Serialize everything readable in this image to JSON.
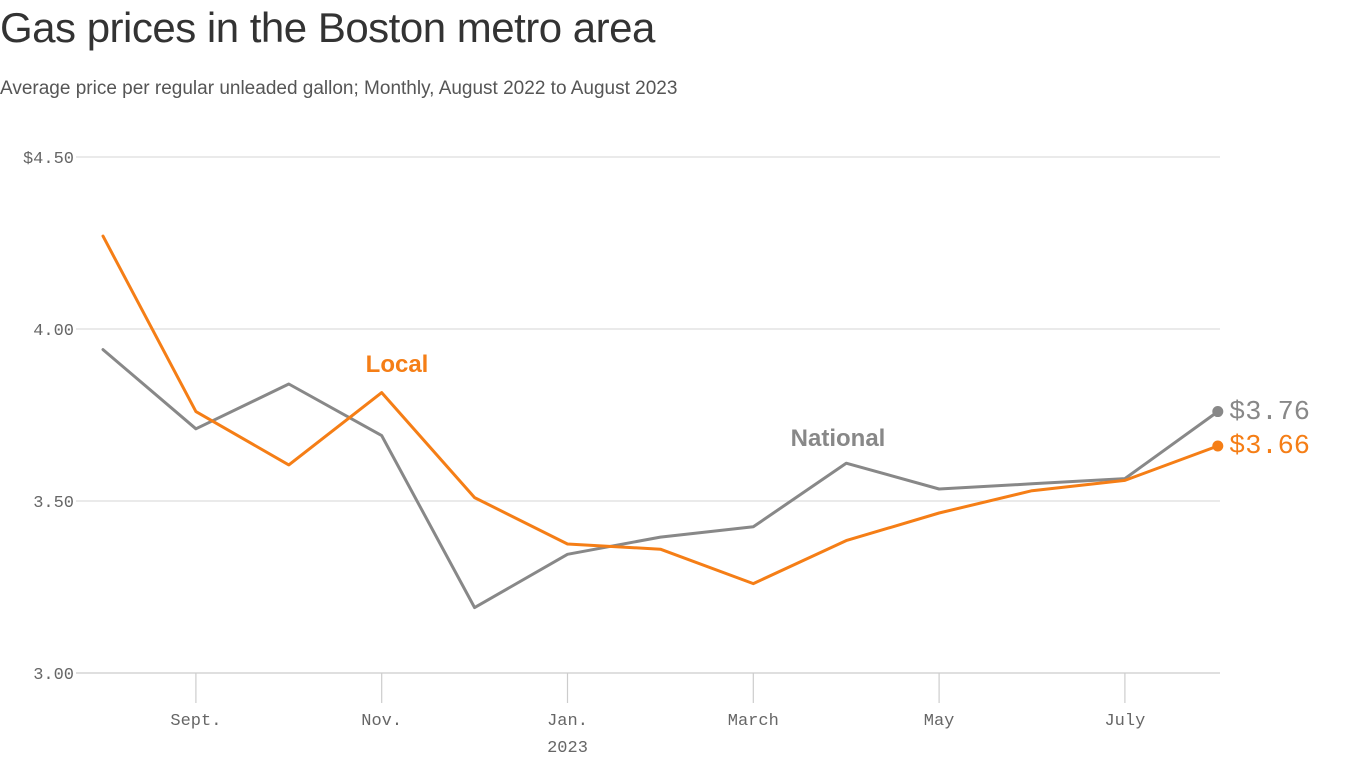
{
  "header": {
    "title": "Gas prices in the Boston metro area",
    "subtitle": "Average price per regular unleaded gallon; Monthly, August 2022 to August 2023"
  },
  "colors": {
    "local": "#F57E16",
    "national": "#888888",
    "grid": "#DDDDDD",
    "axis": "#CCCCCC",
    "text": "#666666"
  },
  "chart_data": {
    "type": "line",
    "title": "Gas prices in the Boston metro area",
    "subtitle": "Average price per regular unleaded gallon; Monthly, August 2022 to August 2023",
    "xlabel": "",
    "ylabel": "",
    "x": [
      "Aug 2022",
      "Sep 2022",
      "Oct 2022",
      "Nov 2022",
      "Dec 2022",
      "Jan 2023",
      "Feb 2023",
      "Mar 2023",
      "Apr 2023",
      "May 2023",
      "Jun 2023",
      "Jul 2023",
      "Aug 2023"
    ],
    "ylim": [
      3.0,
      4.5
    ],
    "grid": true,
    "y_ticks": [
      {
        "value": 4.5,
        "label": "$4.50"
      },
      {
        "value": 4.0,
        "label": "4.00"
      },
      {
        "value": 3.5,
        "label": "3.50"
      },
      {
        "value": 3.0,
        "label": "3.00"
      }
    ],
    "x_ticks": [
      {
        "index": 1,
        "label": "Sept."
      },
      {
        "index": 3,
        "label": "Nov."
      },
      {
        "index": 5,
        "label": "Jan.",
        "sublabel": "2023"
      },
      {
        "index": 7,
        "label": "March"
      },
      {
        "index": 9,
        "label": "May"
      },
      {
        "index": 11,
        "label": "July"
      }
    ],
    "series": [
      {
        "name": "National",
        "label": "National",
        "color": "#888888",
        "end_label": "$3.76",
        "values": [
          3.94,
          3.71,
          3.84,
          3.69,
          3.19,
          3.345,
          3.395,
          3.425,
          3.61,
          3.535,
          3.55,
          3.565,
          3.76
        ]
      },
      {
        "name": "Local",
        "label": "Local",
        "color": "#F57E16",
        "end_label": "$3.66",
        "values": [
          4.27,
          3.76,
          3.605,
          3.815,
          3.51,
          3.375,
          3.36,
          3.26,
          3.385,
          3.465,
          3.53,
          3.56,
          3.66
        ]
      }
    ]
  }
}
